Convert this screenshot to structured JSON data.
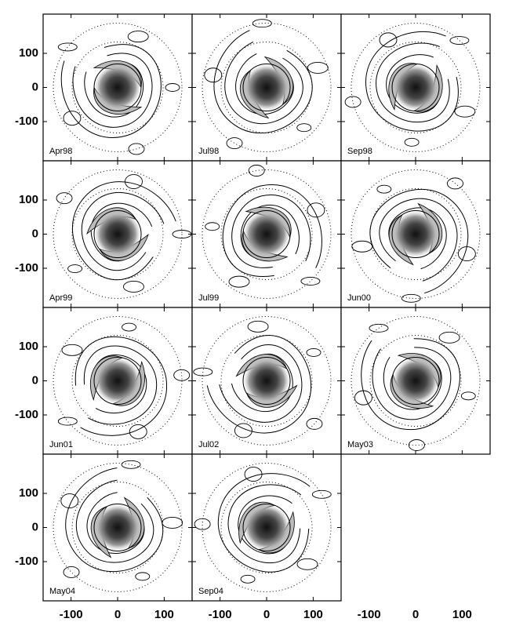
{
  "chart_data": {
    "type": "contour-grid",
    "panels": [
      {
        "label": "Apr98"
      },
      {
        "label": "Jul98"
      },
      {
        "label": "Sep98"
      },
      {
        "label": "Apr99"
      },
      {
        "label": "Jul99"
      },
      {
        "label": "Jun00"
      },
      {
        "label": "Jun01"
      },
      {
        "label": "Jul02"
      },
      {
        "label": "May03"
      },
      {
        "label": "May04"
      },
      {
        "label": "Sep04"
      }
    ],
    "xlim": [
      -160,
      160
    ],
    "ylim": [
      -215,
      215
    ],
    "xticks": [
      -100,
      0,
      100
    ],
    "yticks": [
      -100,
      0,
      100
    ]
  }
}
